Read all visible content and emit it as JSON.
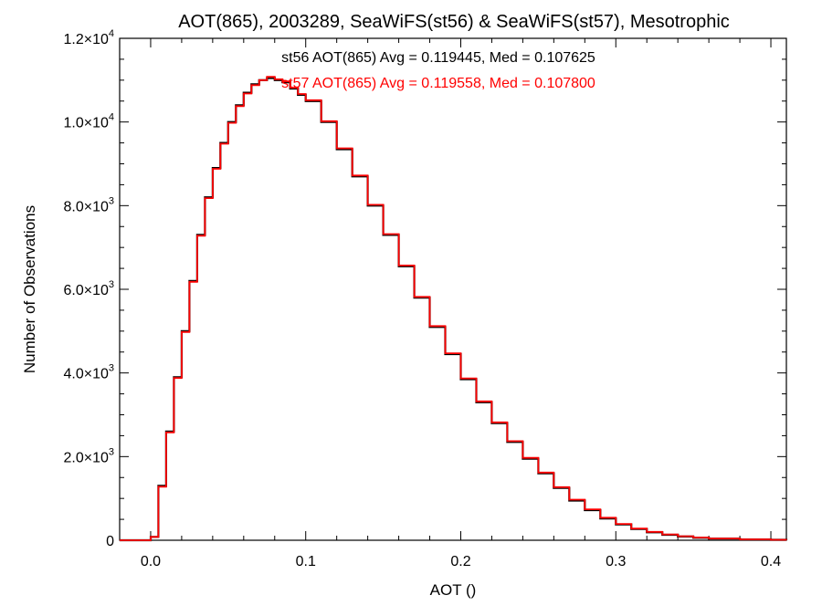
{
  "chart_data": {
    "type": "line",
    "style": "histogram-step",
    "title": "AOT(865), 2003289, SeaWiFS(st56) & SeaWiFS(st57), Mesotrophic",
    "xlabel": "AOT ()",
    "ylabel": "Number of Observations",
    "xlim": [
      -0.02,
      0.41
    ],
    "ylim": [
      0,
      12000
    ],
    "x_ticks": [
      {
        "value": 0.0,
        "label": "0.0"
      },
      {
        "value": 0.1,
        "label": "0.1"
      },
      {
        "value": 0.2,
        "label": "0.2"
      },
      {
        "value": 0.3,
        "label": "0.3"
      },
      {
        "value": 0.4,
        "label": "0.4"
      }
    ],
    "y_ticks": [
      {
        "value": 0,
        "mant": "0",
        "exp": ""
      },
      {
        "value": 2000,
        "mant": "2.0×10",
        "exp": "3"
      },
      {
        "value": 4000,
        "mant": "4.0×10",
        "exp": "3"
      },
      {
        "value": 6000,
        "mant": "6.0×10",
        "exp": "3"
      },
      {
        "value": 8000,
        "mant": "8.0×10",
        "exp": "3"
      },
      {
        "value": 10000,
        "mant": "1.0×10",
        "exp": "4"
      },
      {
        "value": 12000,
        "mant": "1.2×10",
        "exp": "4"
      }
    ],
    "annotations": [
      {
        "text": "st56 AOT(865) Avg = 0.119445, Med = 0.107625",
        "color": "#000000"
      },
      {
        "text": "st57 AOT(865) Avg = 0.119558, Med = 0.107800",
        "color": "#ff0000"
      }
    ],
    "series": [
      {
        "color": "#000000",
        "x": [
          -0.02,
          0.0,
          0.005,
          0.01,
          0.015,
          0.02,
          0.025,
          0.03,
          0.035,
          0.04,
          0.045,
          0.05,
          0.055,
          0.06,
          0.065,
          0.07,
          0.075,
          0.08,
          0.085,
          0.09,
          0.095,
          0.1,
          0.11,
          0.12,
          0.13,
          0.14,
          0.15,
          0.16,
          0.17,
          0.18,
          0.19,
          0.2,
          0.21,
          0.22,
          0.23,
          0.24,
          0.25,
          0.26,
          0.27,
          0.28,
          0.29,
          0.3,
          0.31,
          0.32,
          0.33,
          0.34,
          0.35,
          0.36,
          0.38,
          0.4,
          0.41
        ],
        "y": [
          0,
          80,
          1300,
          2600,
          3900,
          5000,
          6200,
          7300,
          8200,
          8900,
          9500,
          10000,
          10400,
          10700,
          10900,
          11000,
          11050,
          11000,
          10950,
          10800,
          10650,
          10500,
          10000,
          9350,
          8700,
          8000,
          7300,
          6550,
          5800,
          5100,
          4450,
          3850,
          3300,
          2800,
          2350,
          1950,
          1600,
          1250,
          950,
          720,
          520,
          380,
          270,
          190,
          130,
          90,
          60,
          40,
          20,
          10,
          5
        ]
      },
      {
        "color": "#ff0000",
        "x": [
          -0.02,
          0.0,
          0.005,
          0.01,
          0.015,
          0.02,
          0.025,
          0.03,
          0.035,
          0.04,
          0.045,
          0.05,
          0.055,
          0.06,
          0.065,
          0.07,
          0.075,
          0.08,
          0.085,
          0.09,
          0.095,
          0.1,
          0.11,
          0.12,
          0.13,
          0.14,
          0.15,
          0.16,
          0.17,
          0.18,
          0.19,
          0.2,
          0.21,
          0.22,
          0.23,
          0.24,
          0.25,
          0.26,
          0.27,
          0.28,
          0.29,
          0.3,
          0.31,
          0.32,
          0.33,
          0.34,
          0.35,
          0.36,
          0.38,
          0.4,
          0.41
        ],
        "y": [
          0,
          80,
          1280,
          2580,
          3880,
          4980,
          6180,
          7280,
          8180,
          8880,
          9480,
          9980,
          10380,
          10680,
          10880,
          11000,
          11080,
          11020,
          10970,
          10820,
          10670,
          10520,
          10020,
          9370,
          8720,
          8020,
          7320,
          6570,
          5820,
          5120,
          4470,
          3870,
          3320,
          2820,
          2370,
          1970,
          1620,
          1270,
          970,
          740,
          540,
          390,
          280,
          200,
          140,
          95,
          65,
          42,
          22,
          11,
          5
        ]
      }
    ]
  }
}
